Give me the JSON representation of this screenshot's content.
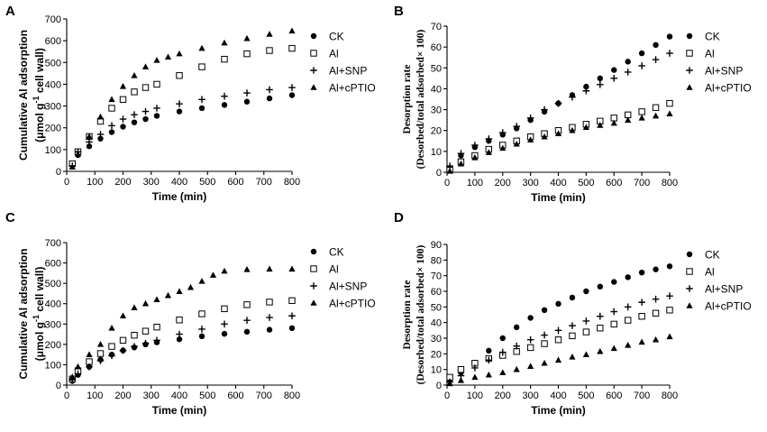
{
  "chart_data": [
    {
      "panel": "A",
      "type": "scatter",
      "title": "",
      "xlabel": "Time (min)",
      "ylabel_line1": "Cumulative Al adsorption",
      "ylabel_line2_pre": "(μmol g",
      "ylabel_line2_sup": "-1",
      "ylabel_line2_post": " cell wall)",
      "xlim": [
        0,
        800
      ],
      "ylim": [
        0,
        700
      ],
      "xticks": [
        0,
        100,
        200,
        300,
        400,
        500,
        600,
        700,
        800
      ],
      "yticks": [
        0,
        100,
        200,
        300,
        400,
        500,
        600,
        700
      ],
      "legend": "right",
      "series": [
        {
          "name": "CK",
          "marker": "circle",
          "x": [
            20,
            40,
            80,
            120,
            160,
            200,
            240,
            280,
            320,
            400,
            480,
            560,
            640,
            720,
            800
          ],
          "y": [
            30,
            75,
            115,
            150,
            180,
            205,
            225,
            240,
            255,
            275,
            290,
            305,
            320,
            335,
            350
          ]
        },
        {
          "name": "Al",
          "marker": "square",
          "x": [
            20,
            40,
            80,
            120,
            160,
            200,
            240,
            280,
            320,
            400,
            480,
            560,
            640,
            720,
            800
          ],
          "y": [
            35,
            90,
            160,
            230,
            290,
            330,
            365,
            385,
            400,
            440,
            480,
            515,
            540,
            555,
            565
          ]
        },
        {
          "name": "Al+SNP",
          "marker": "plus",
          "x": [
            20,
            40,
            80,
            120,
            160,
            200,
            240,
            280,
            320,
            400,
            480,
            560,
            640,
            720,
            800
          ],
          "y": [
            25,
            90,
            135,
            170,
            210,
            240,
            260,
            275,
            290,
            310,
            330,
            345,
            360,
            375,
            385
          ]
        },
        {
          "name": "Al+cPTIO",
          "marker": "triangle",
          "x": [
            20,
            40,
            80,
            120,
            160,
            200,
            240,
            280,
            320,
            360,
            400,
            480,
            560,
            640,
            720,
            800
          ],
          "y": [
            20,
            80,
            160,
            250,
            330,
            390,
            440,
            480,
            510,
            525,
            540,
            565,
            590,
            610,
            630,
            645
          ]
        }
      ]
    },
    {
      "panel": "B",
      "type": "scatter",
      "title": "",
      "xlabel": "Time (min)",
      "ylabel_line1": "Desorption rate",
      "ylabel_line2": "(Desorbed/total adsorbed× 100)",
      "xlim": [
        0,
        800
      ],
      "ylim": [
        0,
        70
      ],
      "xticks": [
        0,
        100,
        200,
        300,
        400,
        500,
        600,
        700,
        800
      ],
      "yticks": [
        0,
        10,
        20,
        30,
        40,
        50,
        60,
        70
      ],
      "legend": "right",
      "series": [
        {
          "name": "CK",
          "marker": "circle",
          "x": [
            10,
            50,
            100,
            150,
            200,
            250,
            300,
            350,
            400,
            450,
            500,
            550,
            600,
            650,
            700,
            750,
            800
          ],
          "y": [
            2,
            8,
            12,
            15,
            18,
            21,
            25,
            29,
            33,
            37,
            41,
            45,
            49,
            53,
            57,
            61,
            65
          ]
        },
        {
          "name": "Al",
          "marker": "square",
          "x": [
            10,
            50,
            100,
            150,
            200,
            250,
            300,
            350,
            400,
            450,
            500,
            550,
            600,
            650,
            700,
            750,
            800
          ],
          "y": [
            1,
            5,
            8,
            11,
            13,
            15,
            17,
            18.5,
            20,
            21.5,
            23,
            24.5,
            26,
            27.5,
            29,
            31,
            33
          ]
        },
        {
          "name": "Al+SNP",
          "marker": "plus",
          "x": [
            10,
            50,
            100,
            150,
            200,
            250,
            300,
            350,
            400,
            450,
            500,
            550,
            600,
            650,
            700,
            750,
            800
          ],
          "y": [
            3,
            9,
            13,
            16,
            19,
            22,
            26,
            30,
            33,
            36,
            39,
            42,
            45,
            48,
            51,
            54,
            57
          ]
        },
        {
          "name": "Al+cPTIO",
          "marker": "triangle",
          "x": [
            10,
            50,
            100,
            150,
            200,
            250,
            300,
            350,
            400,
            450,
            500,
            550,
            600,
            650,
            700,
            750,
            800
          ],
          "y": [
            0.5,
            4,
            7,
            9.5,
            11.5,
            13.5,
            15.5,
            17,
            18.5,
            20,
            21.5,
            22.5,
            23.5,
            25,
            26,
            27,
            28
          ]
        }
      ]
    },
    {
      "panel": "C",
      "type": "scatter",
      "title": "",
      "xlabel": "Time (min)",
      "ylabel_line1": "Cumulative Al adsorption",
      "ylabel_line2_pre": "(μmol g",
      "ylabel_line2_sup": "-1",
      "ylabel_line2_post": " cell wall)",
      "xlim": [
        0,
        800
      ],
      "ylim": [
        0,
        700
      ],
      "xticks": [
        0,
        100,
        200,
        300,
        400,
        500,
        600,
        700,
        800
      ],
      "yticks": [
        0,
        100,
        200,
        300,
        400,
        500,
        600,
        700
      ],
      "legend": "right",
      "series": [
        {
          "name": "CK",
          "marker": "circle",
          "x": [
            20,
            40,
            80,
            120,
            160,
            200,
            240,
            280,
            320,
            400,
            480,
            560,
            640,
            720,
            800
          ],
          "y": [
            20,
            50,
            90,
            125,
            150,
            170,
            185,
            200,
            210,
            225,
            240,
            252,
            262,
            272,
            280
          ]
        },
        {
          "name": "Al",
          "marker": "square",
          "x": [
            20,
            40,
            80,
            120,
            160,
            200,
            240,
            280,
            320,
            400,
            480,
            560,
            640,
            720,
            800
          ],
          "y": [
            30,
            70,
            115,
            155,
            190,
            220,
            245,
            265,
            285,
            320,
            350,
            375,
            395,
            408,
            415
          ]
        },
        {
          "name": "Al+SNP",
          "marker": "plus",
          "x": [
            20,
            40,
            80,
            120,
            160,
            200,
            240,
            280,
            320,
            400,
            480,
            560,
            640,
            720,
            800
          ],
          "y": [
            25,
            55,
            90,
            120,
            145,
            170,
            190,
            205,
            220,
            250,
            275,
            300,
            318,
            332,
            340
          ]
        },
        {
          "name": "Al+cPTIO",
          "marker": "triangle",
          "x": [
            20,
            40,
            80,
            120,
            160,
            200,
            240,
            280,
            320,
            360,
            400,
            440,
            480,
            520,
            560,
            640,
            720,
            800
          ],
          "y": [
            40,
            90,
            150,
            200,
            280,
            340,
            380,
            400,
            420,
            440,
            460,
            480,
            510,
            540,
            560,
            568,
            570,
            570
          ]
        }
      ]
    },
    {
      "panel": "D",
      "type": "scatter",
      "title": "",
      "xlabel": "Time (min)",
      "ylabel_line1": "Desorption rate",
      "ylabel_line2": "(Desorbed/total adsorbed× 100)",
      "xlim": [
        0,
        800
      ],
      "ylim": [
        0,
        90
      ],
      "xticks": [
        0,
        100,
        200,
        300,
        400,
        500,
        600,
        700,
        800
      ],
      "yticks": [
        0,
        10,
        20,
        30,
        40,
        50,
        60,
        70,
        80,
        90
      ],
      "legend": "right",
      "series": [
        {
          "name": "CK",
          "marker": "circle",
          "x": [
            10,
            50,
            100,
            150,
            200,
            250,
            300,
            350,
            400,
            450,
            500,
            550,
            600,
            650,
            700,
            750,
            800
          ],
          "y": [
            3,
            8,
            14,
            22,
            30,
            37,
            43,
            48,
            52,
            56,
            60,
            63,
            66,
            69,
            72,
            74,
            76
          ]
        },
        {
          "name": "Al",
          "marker": "square",
          "x": [
            10,
            50,
            100,
            150,
            200,
            250,
            300,
            350,
            400,
            450,
            500,
            550,
            600,
            650,
            700,
            750,
            800
          ],
          "y": [
            5,
            10,
            14,
            17,
            19,
            21.5,
            24,
            26.5,
            29,
            31.5,
            34,
            36.5,
            39,
            41.5,
            44,
            46,
            48
          ]
        },
        {
          "name": "Al+SNP",
          "marker": "plus",
          "x": [
            10,
            50,
            100,
            150,
            200,
            250,
            300,
            350,
            400,
            450,
            500,
            550,
            600,
            650,
            700,
            750,
            800
          ],
          "y": [
            2,
            6,
            11,
            16,
            21,
            25,
            29,
            32,
            35,
            38,
            41,
            44,
            47,
            50,
            53,
            55,
            57
          ]
        },
        {
          "name": "Al+cPTIO",
          "marker": "triangle",
          "x": [
            10,
            50,
            100,
            150,
            200,
            250,
            300,
            350,
            400,
            450,
            500,
            550,
            600,
            650,
            700,
            750,
            800
          ],
          "y": [
            1,
            3,
            5,
            6.5,
            8,
            10,
            12,
            14,
            16,
            18,
            19.5,
            21.5,
            23.5,
            25.5,
            27.5,
            29,
            31
          ]
        }
      ]
    }
  ]
}
